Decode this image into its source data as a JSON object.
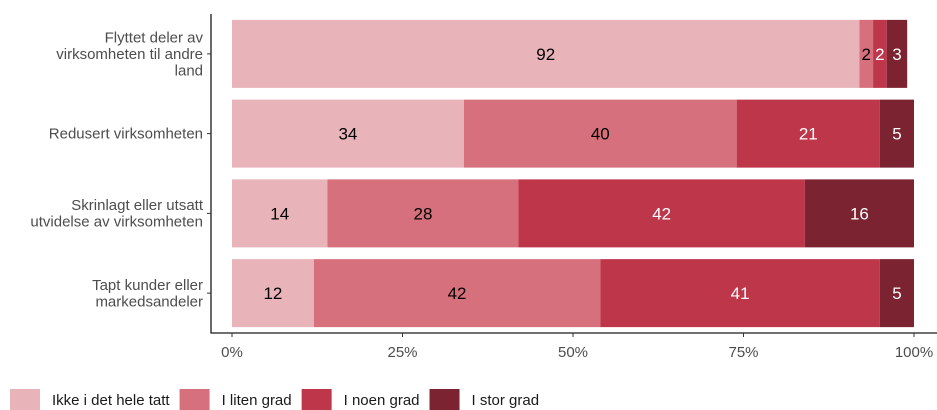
{
  "chart_data": {
    "type": "bar",
    "orientation": "horizontal",
    "stacked": true,
    "categories": [
      [
        "Flyttet deler av",
        "virksomheten til andre",
        "land"
      ],
      [
        "Redusert virksomheten"
      ],
      [
        "Skrinlagt eller utsatt",
        "utvidelse av virksomheten"
      ],
      [
        "Tapt kunder eller",
        "markedsandeler"
      ]
    ],
    "series": [
      {
        "name": "Ikke i det hele tatt",
        "color": "#e8b4ba",
        "values": [
          92,
          34,
          14,
          12
        ],
        "labels": [
          "92",
          "34",
          "14",
          "12"
        ]
      },
      {
        "name": "I liten grad",
        "color": "#d6707c",
        "values": [
          2,
          40,
          28,
          42
        ],
        "labels": [
          "2",
          "40",
          "28",
          "42"
        ]
      },
      {
        "name": "I noen grad",
        "color": "#be3649",
        "values": [
          2,
          21,
          42,
          41
        ],
        "labels": [
          "2",
          "21",
          "42",
          "41"
        ]
      },
      {
        "name": "I stor grad",
        "color": "#7b2331",
        "values": [
          3,
          5,
          16,
          5
        ],
        "labels": [
          "3",
          "5",
          "16",
          "5"
        ]
      }
    ],
    "xlim": [
      0,
      100
    ],
    "x_ticks": [
      0,
      25,
      50,
      75,
      100
    ],
    "x_tick_labels": [
      "0%",
      "25%",
      "50%",
      "75%",
      "100%"
    ],
    "title": "",
    "xlabel": "",
    "ylabel": "",
    "grid": false,
    "legend_position": "bottom-left"
  }
}
